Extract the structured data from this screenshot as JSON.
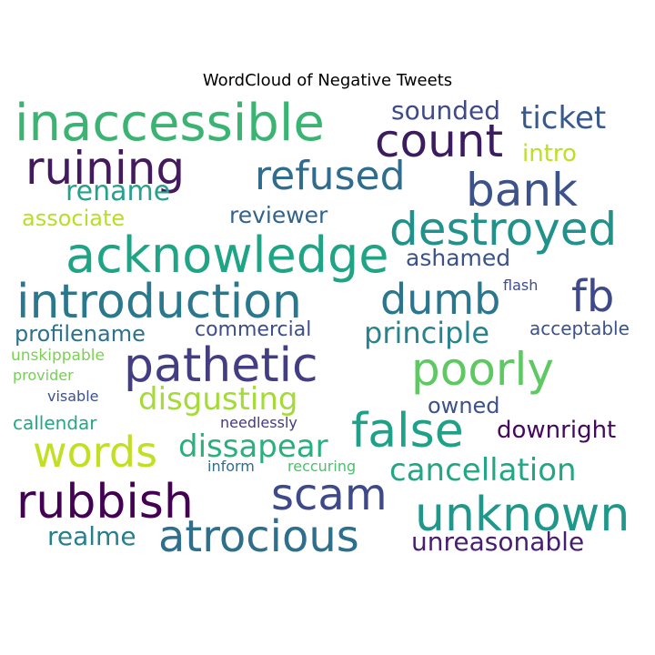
{
  "chart_data": {
    "type": "wordcloud",
    "title": "WordCloud of Negative Tweets",
    "words": [
      {
        "text": "inaccessible",
        "color": "#3bb473"
      },
      {
        "text": "count",
        "color": "#3b1c5f"
      },
      {
        "text": "ruining",
        "color": "#441a5e"
      },
      {
        "text": "refused",
        "color": "#2f6c8e"
      },
      {
        "text": "bank",
        "color": "#3b528b"
      },
      {
        "text": "ticket",
        "color": "#38598c"
      },
      {
        "text": "sounded",
        "color": "#3e4a89"
      },
      {
        "text": "intro",
        "color": "#bddf26"
      },
      {
        "text": "rename",
        "color": "#25a18e"
      },
      {
        "text": "associate",
        "color": "#b8de29"
      },
      {
        "text": "reviewer",
        "color": "#33638d"
      },
      {
        "text": "destroyed",
        "color": "#21918c"
      },
      {
        "text": "acknowledge",
        "color": "#20a486"
      },
      {
        "text": "ashamed",
        "color": "#3b528b"
      },
      {
        "text": "introduction",
        "color": "#2a788e"
      },
      {
        "text": "dumb",
        "color": "#2a768e"
      },
      {
        "text": "fb",
        "color": "#3e4989"
      },
      {
        "text": "flash",
        "color": "#3e4c8a"
      },
      {
        "text": "profilename",
        "color": "#2c718e"
      },
      {
        "text": "commercial",
        "color": "#3d4e8a"
      },
      {
        "text": "principle",
        "color": "#26838f"
      },
      {
        "text": "acceptable",
        "color": "#3b528b"
      },
      {
        "text": "unskippable",
        "color": "#7ad151"
      },
      {
        "text": "pathetic",
        "color": "#433d84"
      },
      {
        "text": "poorly",
        "color": "#5ec962"
      },
      {
        "text": "provider",
        "color": "#75d054"
      },
      {
        "text": "disgusting",
        "color": "#a5db36"
      },
      {
        "text": "visable",
        "color": "#3b528b"
      },
      {
        "text": "owned",
        "color": "#3b528b"
      },
      {
        "text": "callendar",
        "color": "#22a884"
      },
      {
        "text": "needlessly",
        "color": "#443983"
      },
      {
        "text": "false",
        "color": "#1fa088"
      },
      {
        "text": "downright",
        "color": "#46085c"
      },
      {
        "text": "words",
        "color": "#c2df23"
      },
      {
        "text": "dissapear",
        "color": "#2ab07f"
      },
      {
        "text": "cancellation",
        "color": "#22a785"
      },
      {
        "text": "inform",
        "color": "#2f6c8e"
      },
      {
        "text": "reccuring",
        "color": "#4ac16d"
      },
      {
        "text": "rubbish",
        "color": "#440154"
      },
      {
        "text": "scam",
        "color": "#3e4989"
      },
      {
        "text": "unknown",
        "color": "#1f988b"
      },
      {
        "text": "realme",
        "color": "#277f8e"
      },
      {
        "text": "atrocious",
        "color": "#2e6f8e"
      },
      {
        "text": "unreasonable",
        "color": "#481f70"
      }
    ]
  }
}
